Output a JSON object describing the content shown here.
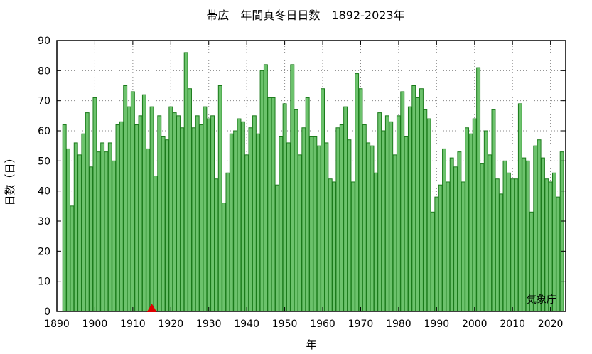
{
  "chart_data": {
    "type": "bar",
    "title": "帯広　年間真冬日日数　1892-2023年",
    "xlabel": "年",
    "ylabel": "日数（日）",
    "credit": "気象庁",
    "xlim": [
      1890,
      2024
    ],
    "ylim": [
      0,
      90
    ],
    "xticks": [
      1890,
      1900,
      1910,
      1920,
      1930,
      1940,
      1950,
      1960,
      1970,
      1980,
      1990,
      2000,
      2010,
      2020
    ],
    "yticks": [
      0,
      10,
      20,
      30,
      40,
      50,
      60,
      70,
      80,
      90
    ],
    "grid": true,
    "bar_color": "#6cc26c",
    "bar_edge_color": "#1a7a1a",
    "marker_color": "#dd0000",
    "marker_year": 1915,
    "years": [
      1892,
      1893,
      1894,
      1895,
      1896,
      1897,
      1898,
      1899,
      1900,
      1901,
      1902,
      1903,
      1904,
      1905,
      1906,
      1907,
      1908,
      1909,
      1910,
      1911,
      1912,
      1913,
      1914,
      1915,
      1916,
      1917,
      1918,
      1919,
      1920,
      1921,
      1922,
      1923,
      1924,
      1925,
      1926,
      1927,
      1928,
      1929,
      1930,
      1931,
      1932,
      1933,
      1934,
      1935,
      1936,
      1937,
      1938,
      1939,
      1940,
      1941,
      1942,
      1943,
      1944,
      1945,
      1946,
      1947,
      1948,
      1949,
      1950,
      1951,
      1952,
      1953,
      1954,
      1955,
      1956,
      1957,
      1958,
      1959,
      1960,
      1961,
      1962,
      1963,
      1964,
      1965,
      1966,
      1967,
      1968,
      1969,
      1970,
      1971,
      1972,
      1973,
      1974,
      1975,
      1976,
      1977,
      1978,
      1979,
      1980,
      1981,
      1982,
      1983,
      1984,
      1985,
      1986,
      1987,
      1988,
      1989,
      1990,
      1991,
      1992,
      1993,
      1994,
      1995,
      1996,
      1997,
      1998,
      1999,
      2000,
      2001,
      2002,
      2003,
      2004,
      2005,
      2006,
      2007,
      2008,
      2009,
      2010,
      2011,
      2012,
      2013,
      2014,
      2015,
      2016,
      2017,
      2018,
      2019,
      2020,
      2021,
      2022,
      2023
    ],
    "values": [
      62,
      54,
      35,
      56,
      52,
      59,
      66,
      48,
      71,
      53,
      56,
      53,
      56,
      50,
      62,
      63,
      75,
      68,
      73,
      62,
      65,
      72,
      54,
      68,
      45,
      65,
      58,
      57,
      68,
      66,
      65,
      61,
      86,
      74,
      61,
      65,
      62,
      68,
      64,
      65,
      44,
      75,
      36,
      46,
      59,
      60,
      64,
      63,
      52,
      61,
      65,
      59,
      80,
      82,
      71,
      71,
      42,
      58,
      69,
      56,
      82,
      67,
      52,
      61,
      71,
      58,
      58,
      55,
      74,
      56,
      44,
      43,
      61,
      62,
      68,
      57,
      43,
      79,
      74,
      62,
      56,
      55,
      46,
      66,
      60,
      65,
      63,
      52,
      65,
      73,
      58,
      68,
      75,
      71,
      74,
      67,
      64,
      33,
      38,
      42,
      54,
      43,
      51,
      48,
      53,
      43,
      61,
      59,
      64,
      81,
      49,
      60,
      52,
      67,
      44,
      39,
      50,
      46,
      44,
      44,
      69,
      51,
      50,
      33,
      55,
      57,
      51,
      44,
      43,
      46,
      38,
      53
    ]
  }
}
